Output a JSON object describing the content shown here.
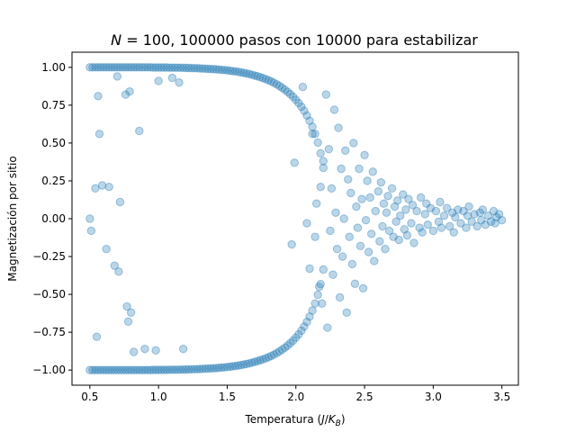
{
  "chart_data": {
    "type": "scatter",
    "title": "N = 100, 100000 pasos con 10000 para estabilizar",
    "title_parts": {
      "var": "N",
      "eq": " = 100, 100000 pasos con 10000 para estabilizar"
    },
    "xlabel": "Temperatura (J/K_B)",
    "xlabel_parts": {
      "pre": "Temperatura (",
      "j": "J",
      "slash": "/",
      "k": "K",
      "sub": "B",
      "post": ")"
    },
    "ylabel": "Magnetización por sitio",
    "xlim": [
      0.37,
      3.62
    ],
    "ylim": [
      -1.1,
      1.1
    ],
    "xticks": [
      0.5,
      1.0,
      1.5,
      2.0,
      2.5,
      3.0,
      3.5
    ],
    "xtick_labels": [
      "0.5",
      "1.0",
      "1.5",
      "2.0",
      "2.5",
      "3.0",
      "3.5"
    ],
    "yticks": [
      -1.0,
      -0.75,
      -0.5,
      -0.25,
      0.0,
      0.25,
      0.5,
      0.75,
      1.0
    ],
    "ytick_labels": [
      "−1.00",
      "−0.75",
      "−0.50",
      "−0.25",
      "0.00",
      "0.25",
      "0.50",
      "0.75",
      "1.00"
    ],
    "grid": false,
    "legend": "none",
    "marker_color": "#1f77b4",
    "marker_alpha": 0.3,
    "points": [
      [
        0.5,
        1.0
      ],
      [
        0.52,
        1.0
      ],
      [
        0.54,
        1.0
      ],
      [
        0.56,
        1.0
      ],
      [
        0.58,
        1.0
      ],
      [
        0.6,
        1.0
      ],
      [
        0.62,
        1.0
      ],
      [
        0.64,
        1.0
      ],
      [
        0.66,
        1.0
      ],
      [
        0.68,
        1.0
      ],
      [
        0.7,
        1.0
      ],
      [
        0.72,
        1.0
      ],
      [
        0.74,
        1.0
      ],
      [
        0.76,
        1.0
      ],
      [
        0.78,
        1.0
      ],
      [
        0.8,
        1.0
      ],
      [
        0.82,
        1.0
      ],
      [
        0.84,
        1.0
      ],
      [
        0.86,
        1.0
      ],
      [
        0.88,
        1.0
      ],
      [
        0.9,
        1.0
      ],
      [
        0.92,
        1.0
      ],
      [
        0.94,
        1.0
      ],
      [
        0.96,
        0.999
      ],
      [
        0.98,
        0.999
      ],
      [
        1.0,
        0.999
      ],
      [
        1.02,
        0.999
      ],
      [
        1.04,
        0.999
      ],
      [
        1.06,
        0.999
      ],
      [
        1.08,
        0.998
      ],
      [
        1.1,
        0.998
      ],
      [
        1.12,
        0.998
      ],
      [
        1.14,
        0.998
      ],
      [
        1.16,
        0.997
      ],
      [
        1.18,
        0.997
      ],
      [
        1.2,
        0.996
      ],
      [
        1.22,
        0.996
      ],
      [
        1.24,
        0.995
      ],
      [
        1.26,
        0.995
      ],
      [
        1.28,
        0.994
      ],
      [
        1.3,
        0.993
      ],
      [
        1.32,
        0.992
      ],
      [
        1.34,
        0.991
      ],
      [
        1.36,
        0.99
      ],
      [
        1.38,
        0.989
      ],
      [
        1.4,
        0.988
      ],
      [
        1.42,
        0.987
      ],
      [
        1.44,
        0.985
      ],
      [
        1.46,
        0.983
      ],
      [
        1.48,
        0.982
      ],
      [
        1.5,
        0.98
      ],
      [
        1.52,
        0.978
      ],
      [
        1.54,
        0.975
      ],
      [
        1.56,
        0.973
      ],
      [
        1.58,
        0.97
      ],
      [
        1.6,
        0.967
      ],
      [
        1.62,
        0.963
      ],
      [
        1.64,
        0.96
      ],
      [
        1.66,
        0.956
      ],
      [
        1.68,
        0.951
      ],
      [
        1.7,
        0.946
      ],
      [
        1.72,
        0.941
      ],
      [
        1.74,
        0.935
      ],
      [
        1.76,
        0.929
      ],
      [
        1.78,
        0.922
      ],
      [
        1.8,
        0.915
      ],
      [
        1.82,
        0.907
      ],
      [
        1.84,
        0.898
      ],
      [
        1.86,
        0.888
      ],
      [
        1.88,
        0.877
      ],
      [
        1.9,
        0.865
      ],
      [
        1.92,
        0.852
      ],
      [
        1.94,
        0.838
      ],
      [
        1.96,
        0.822
      ],
      [
        1.98,
        0.805
      ],
      [
        2.0,
        0.785
      ],
      [
        2.02,
        0.764
      ],
      [
        2.04,
        0.74
      ],
      [
        2.06,
        0.713
      ],
      [
        2.08,
        0.682
      ],
      [
        2.1,
        0.647
      ],
      [
        2.12,
        0.607
      ],
      [
        2.14,
        0.56
      ],
      [
        2.16,
        0.503
      ],
      [
        2.18,
        0.432
      ],
      [
        2.2,
        0.336
      ],
      [
        0.5,
        -1.0
      ],
      [
        0.52,
        -1.0
      ],
      [
        0.54,
        -1.0
      ],
      [
        0.56,
        -1.0
      ],
      [
        0.58,
        -1.0
      ],
      [
        0.6,
        -1.0
      ],
      [
        0.62,
        -1.0
      ],
      [
        0.64,
        -1.0
      ],
      [
        0.66,
        -1.0
      ],
      [
        0.68,
        -1.0
      ],
      [
        0.7,
        -1.0
      ],
      [
        0.72,
        -1.0
      ],
      [
        0.74,
        -1.0
      ],
      [
        0.76,
        -1.0
      ],
      [
        0.78,
        -1.0
      ],
      [
        0.8,
        -1.0
      ],
      [
        0.82,
        -1.0
      ],
      [
        0.84,
        -1.0
      ],
      [
        0.86,
        -1.0
      ],
      [
        0.88,
        -1.0
      ],
      [
        0.9,
        -1.0
      ],
      [
        0.92,
        -1.0
      ],
      [
        0.94,
        -1.0
      ],
      [
        0.96,
        -0.999
      ],
      [
        0.98,
        -0.999
      ],
      [
        1.0,
        -0.999
      ],
      [
        1.02,
        -0.999
      ],
      [
        1.04,
        -0.999
      ],
      [
        1.06,
        -0.999
      ],
      [
        1.08,
        -0.998
      ],
      [
        1.1,
        -0.998
      ],
      [
        1.12,
        -0.998
      ],
      [
        1.14,
        -0.998
      ],
      [
        1.16,
        -0.997
      ],
      [
        1.18,
        -0.997
      ],
      [
        1.2,
        -0.996
      ],
      [
        1.22,
        -0.996
      ],
      [
        1.24,
        -0.995
      ],
      [
        1.26,
        -0.995
      ],
      [
        1.28,
        -0.994
      ],
      [
        1.3,
        -0.993
      ],
      [
        1.32,
        -0.992
      ],
      [
        1.34,
        -0.991
      ],
      [
        1.36,
        -0.99
      ],
      [
        1.38,
        -0.989
      ],
      [
        1.4,
        -0.988
      ],
      [
        1.42,
        -0.987
      ],
      [
        1.44,
        -0.985
      ],
      [
        1.46,
        -0.983
      ],
      [
        1.48,
        -0.982
      ],
      [
        1.5,
        -0.98
      ],
      [
        1.52,
        -0.978
      ],
      [
        1.54,
        -0.975
      ],
      [
        1.56,
        -0.973
      ],
      [
        1.58,
        -0.97
      ],
      [
        1.6,
        -0.967
      ],
      [
        1.62,
        -0.963
      ],
      [
        1.64,
        -0.96
      ],
      [
        1.66,
        -0.956
      ],
      [
        1.68,
        -0.951
      ],
      [
        1.7,
        -0.946
      ],
      [
        1.72,
        -0.941
      ],
      [
        1.74,
        -0.935
      ],
      [
        1.76,
        -0.929
      ],
      [
        1.78,
        -0.922
      ],
      [
        1.8,
        -0.915
      ],
      [
        1.82,
        -0.907
      ],
      [
        1.84,
        -0.898
      ],
      [
        1.86,
        -0.888
      ],
      [
        1.88,
        -0.877
      ],
      [
        1.9,
        -0.865
      ],
      [
        1.92,
        -0.852
      ],
      [
        1.94,
        -0.838
      ],
      [
        1.96,
        -0.822
      ],
      [
        1.98,
        -0.805
      ],
      [
        2.0,
        -0.785
      ],
      [
        2.02,
        -0.764
      ],
      [
        2.04,
        -0.74
      ],
      [
        2.06,
        -0.713
      ],
      [
        2.08,
        -0.682
      ],
      [
        2.1,
        -0.647
      ],
      [
        2.12,
        -0.607
      ],
      [
        2.14,
        -0.56
      ],
      [
        2.16,
        -0.503
      ],
      [
        2.18,
        -0.432
      ],
      [
        2.2,
        -0.336
      ],
      [
        0.5,
        0.0
      ],
      [
        0.51,
        -0.08
      ],
      [
        0.54,
        0.2
      ],
      [
        0.55,
        -0.78
      ],
      [
        0.56,
        0.81
      ],
      [
        0.57,
        0.56
      ],
      [
        0.59,
        0.22
      ],
      [
        0.62,
        -0.2
      ],
      [
        0.64,
        0.21
      ],
      [
        0.68,
        -0.31
      ],
      [
        0.7,
        0.94
      ],
      [
        0.71,
        -0.35
      ],
      [
        0.72,
        0.11
      ],
      [
        0.76,
        0.82
      ],
      [
        0.77,
        -0.58
      ],
      [
        0.78,
        -0.68
      ],
      [
        0.79,
        0.84
      ],
      [
        0.8,
        -0.62
      ],
      [
        0.82,
        -0.88
      ],
      [
        0.86,
        0.58
      ],
      [
        0.9,
        -0.86
      ],
      [
        0.98,
        -0.87
      ],
      [
        1.0,
        0.91
      ],
      [
        1.1,
        0.93
      ],
      [
        1.15,
        0.9
      ],
      [
        1.18,
        -0.86
      ],
      [
        1.97,
        -0.17
      ],
      [
        1.99,
        0.37
      ],
      [
        2.05,
        0.87
      ],
      [
        2.08,
        -0.03
      ],
      [
        2.1,
        -0.33
      ],
      [
        2.12,
        0.56
      ],
      [
        2.14,
        -0.12
      ],
      [
        2.15,
        0.1
      ],
      [
        2.17,
        -0.45
      ],
      [
        2.18,
        0.21
      ],
      [
        2.19,
        -0.56
      ],
      [
        2.2,
        0.38
      ],
      [
        2.22,
        0.82
      ],
      [
        2.23,
        -0.72
      ],
      [
        2.24,
        0.46
      ],
      [
        2.25,
        -0.08
      ],
      [
        2.26,
        0.2
      ],
      [
        2.27,
        -0.37
      ],
      [
        2.28,
        0.72
      ],
      [
        2.29,
        0.04
      ],
      [
        2.3,
        -0.2
      ],
      [
        2.31,
        0.6
      ],
      [
        2.32,
        -0.52
      ],
      [
        2.33,
        0.33
      ],
      [
        2.34,
        -0.25
      ],
      [
        2.35,
        0.0
      ],
      [
        2.36,
        0.45
      ],
      [
        2.37,
        -0.62
      ],
      [
        2.38,
        0.26
      ],
      [
        2.39,
        -0.12
      ],
      [
        2.4,
        0.17
      ],
      [
        2.41,
        -0.3
      ],
      [
        2.42,
        0.5
      ],
      [
        2.43,
        -0.43
      ],
      [
        2.44,
        0.08
      ],
      [
        2.45,
        -0.06
      ],
      [
        2.46,
        0.33
      ],
      [
        2.47,
        -0.18
      ],
      [
        2.48,
        0.13
      ],
      [
        2.49,
        -0.46
      ],
      [
        2.5,
        0.42
      ],
      [
        2.51,
        -0.01
      ],
      [
        2.52,
        0.25
      ],
      [
        2.53,
        -0.22
      ],
      [
        2.54,
        0.14
      ],
      [
        2.55,
        -0.1
      ],
      [
        2.56,
        0.31
      ],
      [
        2.57,
        -0.28
      ],
      [
        2.58,
        0.05
      ],
      [
        2.6,
        0.18
      ],
      [
        2.61,
        -0.15
      ],
      [
        2.62,
        0.24
      ],
      [
        2.63,
        -0.05
      ],
      [
        2.64,
        0.1
      ],
      [
        2.65,
        -0.2
      ],
      [
        2.66,
        0.04
      ],
      [
        2.67,
        0.15
      ],
      [
        2.68,
        -0.08
      ],
      [
        2.7,
        0.2
      ],
      [
        2.71,
        -0.12
      ],
      [
        2.72,
        0.08
      ],
      [
        2.73,
        -0.02
      ],
      [
        2.74,
        0.12
      ],
      [
        2.75,
        -0.14
      ],
      [
        2.76,
        0.02
      ],
      [
        2.78,
        0.16
      ],
      [
        2.79,
        -0.07
      ],
      [
        2.8,
        0.06
      ],
      [
        2.81,
        -0.11
      ],
      [
        2.82,
        0.13
      ],
      [
        2.84,
        -0.03
      ],
      [
        2.85,
        0.09
      ],
      [
        2.86,
        -0.16
      ],
      [
        2.88,
        0.05
      ],
      [
        2.9,
        -0.06
      ],
      [
        2.91,
        0.14
      ],
      [
        2.92,
        -0.09
      ],
      [
        2.94,
        0.03
      ],
      [
        2.95,
        0.1
      ],
      [
        2.96,
        -0.04
      ],
      [
        2.98,
        0.07
      ],
      [
        3.0,
        -0.08
      ],
      [
        3.02,
        0.05
      ],
      [
        3.04,
        -0.02
      ],
      [
        3.05,
        0.11
      ],
      [
        3.06,
        -0.06
      ],
      [
        3.08,
        0.02
      ],
      [
        3.1,
        0.07
      ],
      [
        3.12,
        -0.05
      ],
      [
        3.14,
        0.04
      ],
      [
        3.15,
        -0.09
      ],
      [
        3.16,
        0.01
      ],
      [
        3.18,
        0.06
      ],
      [
        3.2,
        -0.03
      ],
      [
        3.22,
        0.05
      ],
      [
        3.24,
        -0.06
      ],
      [
        3.25,
        0.02
      ],
      [
        3.26,
        0.08
      ],
      [
        3.28,
        -0.02
      ],
      [
        3.3,
        0.03
      ],
      [
        3.32,
        -0.05
      ],
      [
        3.34,
        0.04
      ],
      [
        3.35,
        -0.01
      ],
      [
        3.36,
        0.06
      ],
      [
        3.38,
        -0.04
      ],
      [
        3.4,
        0.02
      ],
      [
        3.42,
        -0.02
      ],
      [
        3.44,
        0.05
      ],
      [
        3.45,
        -0.03
      ],
      [
        3.46,
        0.01
      ],
      [
        3.48,
        0.03
      ],
      [
        3.5,
        -0.01
      ]
    ]
  }
}
